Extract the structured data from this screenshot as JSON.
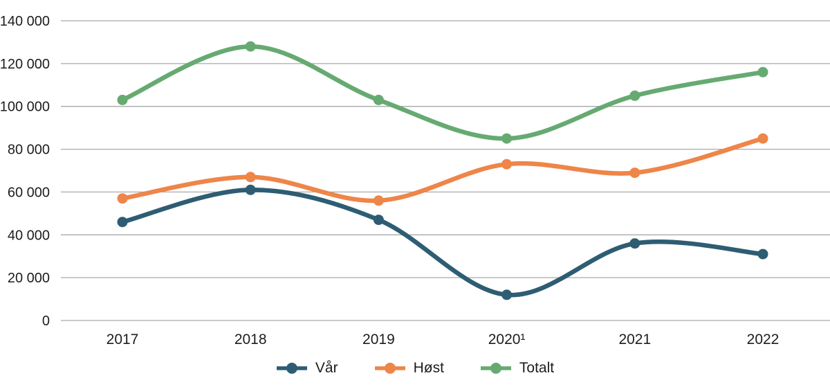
{
  "chart_data": {
    "type": "line",
    "title": "",
    "xlabel": "",
    "ylabel": "",
    "x_tick_labels": [
      "2017",
      "2018",
      "2019",
      "2020¹",
      "2021",
      "2022"
    ],
    "y_ticks": [
      0,
      20000,
      40000,
      60000,
      80000,
      100000,
      120000,
      140000
    ],
    "y_tick_labels": [
      "0",
      "20 000",
      "40 000",
      "60 000",
      "80 000",
      "100 000",
      "120 000",
      "140 000"
    ],
    "ylim": [
      0,
      140000
    ],
    "grid": "horizontal-only",
    "line_style": "smooth-with-round-markers",
    "legend_position": "bottom-center",
    "series": [
      {
        "name": "Vår",
        "color": "#2e5d73",
        "values": [
          46000,
          61000,
          47000,
          12000,
          36000,
          31000
        ]
      },
      {
        "name": "Høst",
        "color": "#ee8549",
        "values": [
          57000,
          67000,
          56000,
          73000,
          69000,
          85000
        ]
      },
      {
        "name": "Totalt",
        "color": "#66aa72",
        "values": [
          103000,
          128000,
          103000,
          85000,
          105000,
          116000
        ]
      }
    ]
  },
  "style": {
    "background": "#ffffff",
    "grid_color": "#a9a9a9",
    "text_color": "#1d1d1b"
  }
}
